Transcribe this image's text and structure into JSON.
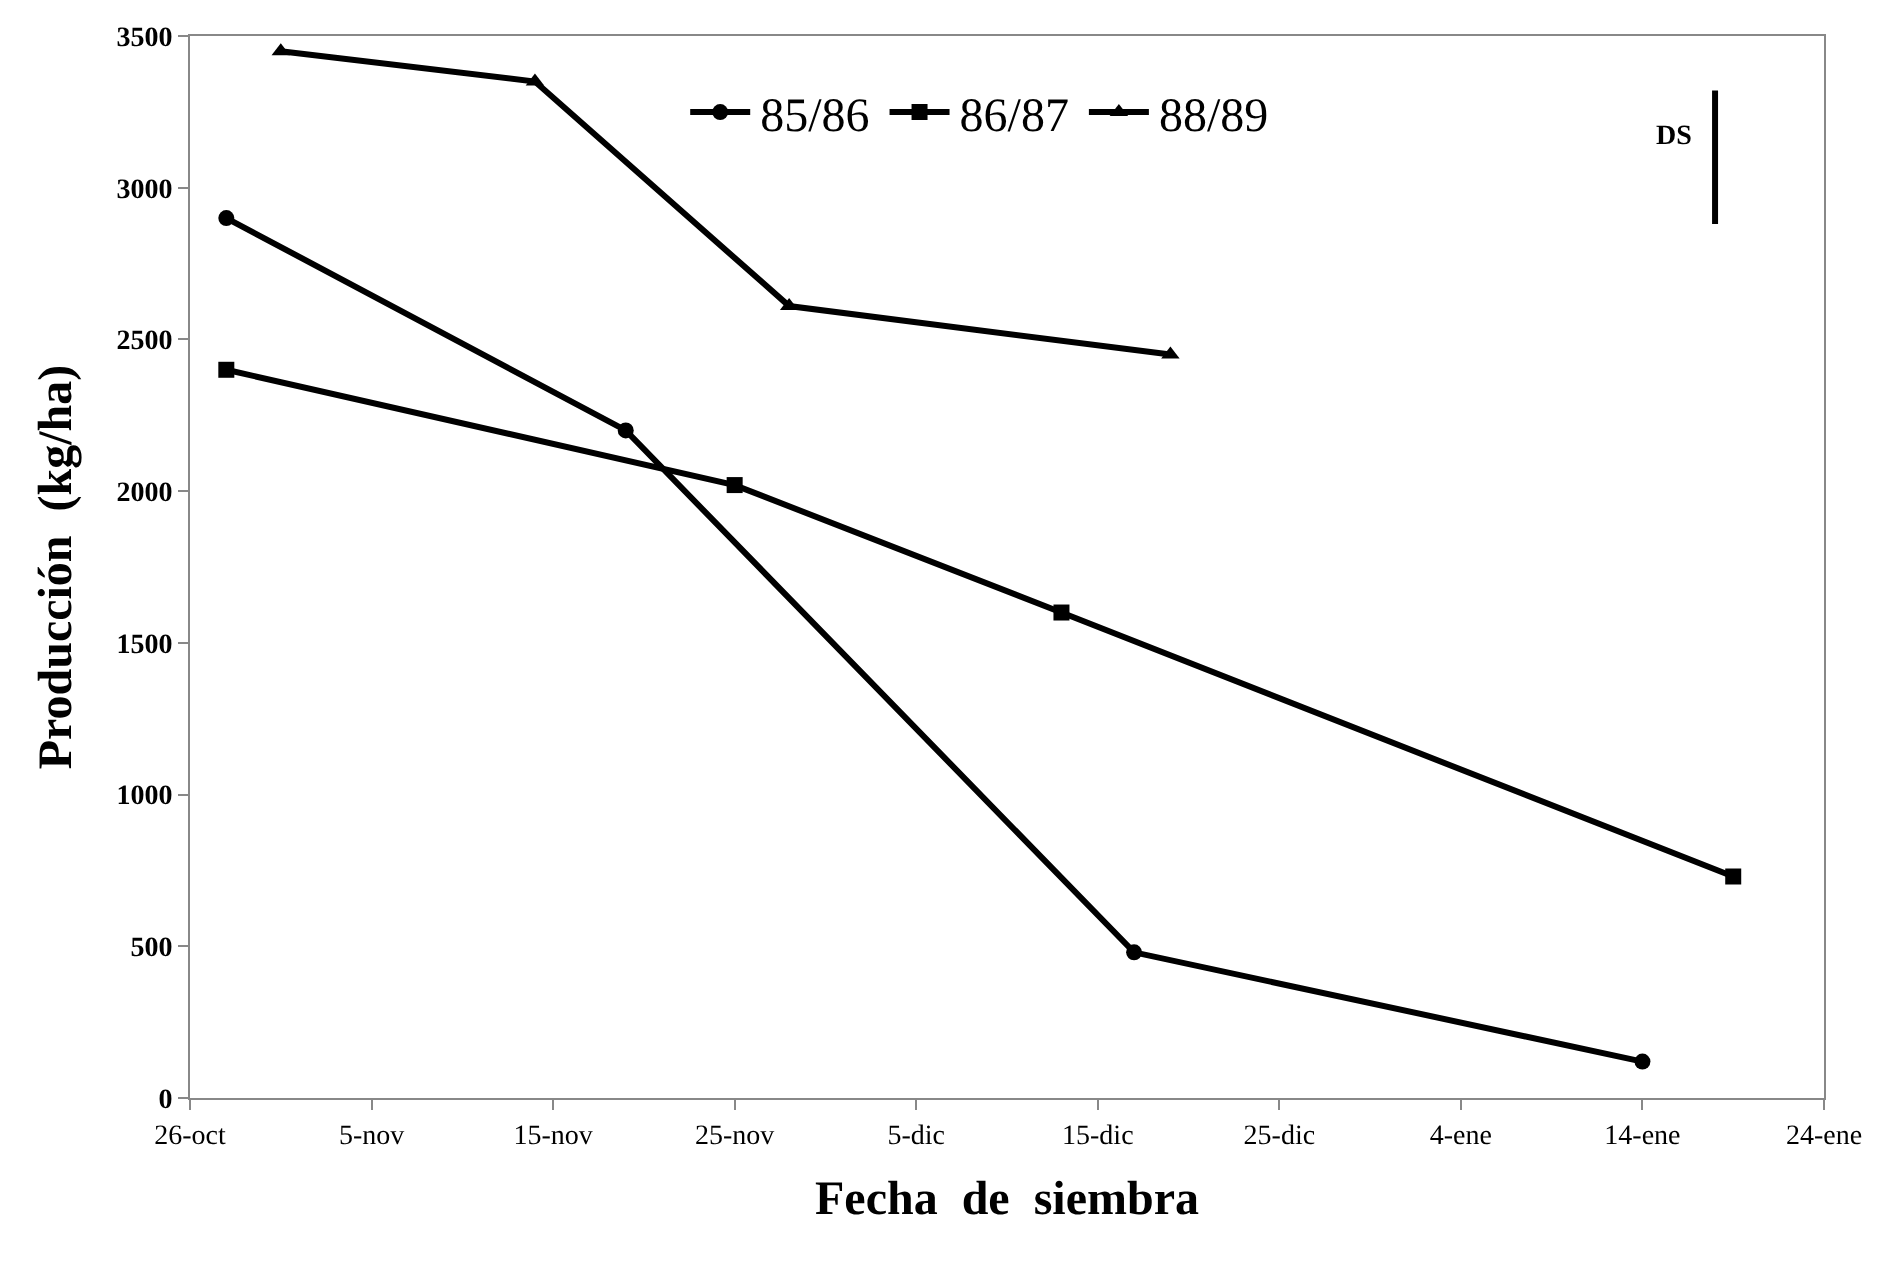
{
  "chart_data": {
    "type": "line",
    "xlabel": "Fecha  de  siembra",
    "ylabel": "Producción  (kg/ha)",
    "xlim": [
      "2000-10-26",
      "2001-01-24"
    ],
    "ylim": [
      0,
      3500
    ],
    "xticks": [
      {
        "value": "2000-10-26",
        "label": "26-oct"
      },
      {
        "value": "2000-11-05",
        "label": "5-nov"
      },
      {
        "value": "2000-11-15",
        "label": "15-nov"
      },
      {
        "value": "2000-11-25",
        "label": "25-nov"
      },
      {
        "value": "2000-12-05",
        "label": "5-dic"
      },
      {
        "value": "2000-12-15",
        "label": "15-dic"
      },
      {
        "value": "2000-12-25",
        "label": "25-dic"
      },
      {
        "value": "2001-01-04",
        "label": "4-ene"
      },
      {
        "value": "2001-01-14",
        "label": "14-ene"
      },
      {
        "value": "2001-01-24",
        "label": "24-ene"
      }
    ],
    "yticks": [
      0,
      500,
      1000,
      1500,
      2000,
      2500,
      3000,
      3500
    ],
    "legend": "top",
    "line_style": "solid",
    "series": [
      {
        "name": "85/86",
        "color": "#000000",
        "marker": "circle",
        "x": [
          "2000-10-28",
          "2000-11-19",
          "2000-12-17",
          "2001-01-14"
        ],
        "values": [
          2900,
          2200,
          480,
          120
        ]
      },
      {
        "name": "86/87",
        "color": "#000000",
        "marker": "square",
        "x": [
          "2000-10-28",
          "2000-11-25",
          "2000-12-13",
          "2001-01-19"
        ],
        "values": [
          2400,
          2020,
          1600,
          730
        ]
      },
      {
        "name": "88/89",
        "color": "#000000",
        "marker": "triangle",
        "x": [
          "2000-10-31",
          "2000-11-14",
          "2000-11-28",
          "2000-12-19"
        ],
        "values": [
          3450,
          3350,
          2610,
          2450
        ]
      },
      {
        "name": "DS",
        "type": "line",
        "color": "#000000",
        "marker": "none",
        "x": [
          "2001-01-18",
          "2001-01-18"
        ],
        "values": [
          2880,
          3320
        ]
      }
    ]
  }
}
